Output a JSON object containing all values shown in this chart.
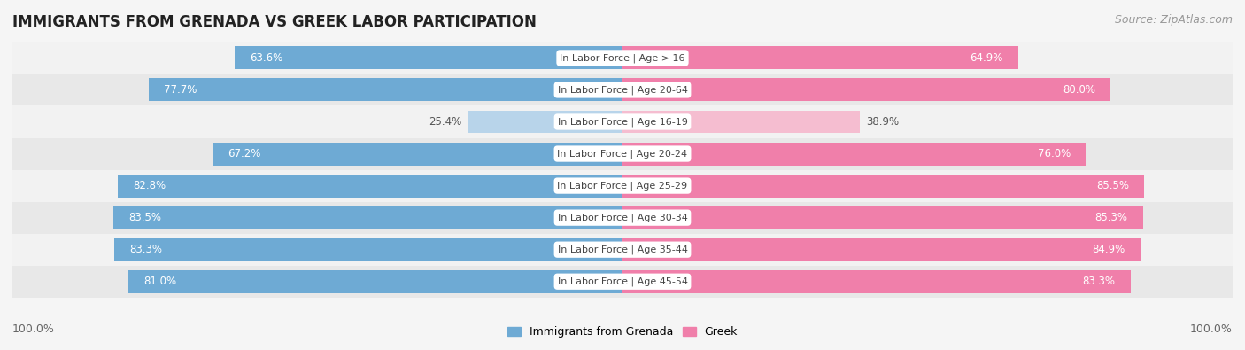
{
  "title": "IMMIGRANTS FROM GRENADA VS GREEK LABOR PARTICIPATION",
  "source": "Source: ZipAtlas.com",
  "categories": [
    "In Labor Force | Age > 16",
    "In Labor Force | Age 20-64",
    "In Labor Force | Age 16-19",
    "In Labor Force | Age 20-24",
    "In Labor Force | Age 25-29",
    "In Labor Force | Age 30-34",
    "In Labor Force | Age 35-44",
    "In Labor Force | Age 45-54"
  ],
  "grenada_values": [
    63.6,
    77.7,
    25.4,
    67.2,
    82.8,
    83.5,
    83.3,
    81.0
  ],
  "greek_values": [
    64.9,
    80.0,
    38.9,
    76.0,
    85.5,
    85.3,
    84.9,
    83.3
  ],
  "grenada_color": "#6eaad4",
  "greek_color": "#f07faa",
  "grenada_color_light": "#b8d4ea",
  "greek_color_light": "#f5bdd0",
  "row_colors": [
    "#f2f2f2",
    "#e8e8e8"
  ],
  "center_label_bg": "#ffffff",
  "background_color": "#f5f5f5",
  "legend_grenada": "Immigrants from Grenada",
  "legend_greek": "Greek",
  "title_fontsize": 12,
  "value_fontsize": 8.5,
  "cat_fontsize": 8,
  "footer_fontsize": 9,
  "source_fontsize": 9
}
